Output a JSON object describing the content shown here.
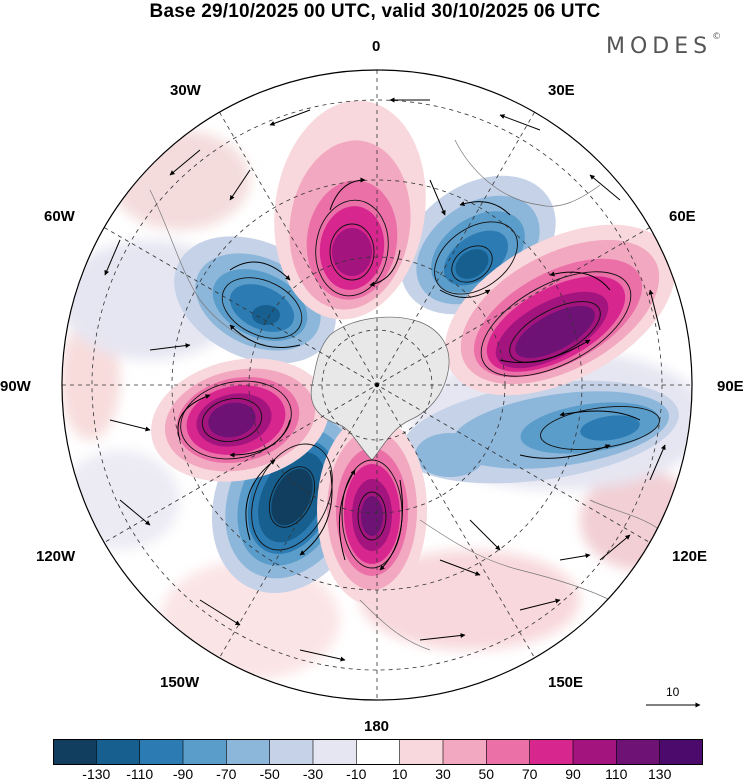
{
  "header": {
    "title": "Base 29/10/2025 00 UTC, valid 30/10/2025 06 UTC",
    "brand": "MODES",
    "brand_mark": "©"
  },
  "map": {
    "projection": "south polar stereographic",
    "longitude_labels": {
      "lon_0": "0",
      "lon_30e": "30E",
      "lon_60e": "60E",
      "lon_90e": "90E",
      "lon_120e": "120E",
      "lon_150e": "150E",
      "lon_180": "180",
      "lon_150w": "150W",
      "lon_120w": "120W",
      "lon_90w": "90W",
      "lon_60w": "60W",
      "lon_30w": "30W"
    },
    "wind_reference": {
      "label": "10"
    }
  },
  "colorbar": {
    "tick_labels": [
      "-130",
      "-110",
      "-90",
      "-70",
      "-50",
      "-30",
      "-10",
      "10",
      "30",
      "50",
      "70",
      "90",
      "110",
      "130"
    ],
    "colors": [
      "#113d5e",
      "#165f8e",
      "#2c7cb3",
      "#5a9cca",
      "#8db7da",
      "#c5d2e8",
      "#e6e6f2",
      "#ffffff",
      "#f8d8dc",
      "#f2a8c0",
      "#ec70a8",
      "#d7278f",
      "#a3147e",
      "#6e1275",
      "#4c0a6c"
    ]
  },
  "anomalies": [
    {
      "name": "blue-center-north-east",
      "value": -110
    },
    {
      "name": "blue-center-north-west",
      "value": -110
    },
    {
      "name": "blue-center-south",
      "value": -130
    },
    {
      "name": "blue-center-east",
      "value": -90
    },
    {
      "name": "magenta-center-north",
      "value": 110
    },
    {
      "name": "magenta-center-east",
      "value": 130
    },
    {
      "name": "magenta-center-west",
      "value": 130
    },
    {
      "name": "magenta-center-south",
      "value": 130
    }
  ]
}
